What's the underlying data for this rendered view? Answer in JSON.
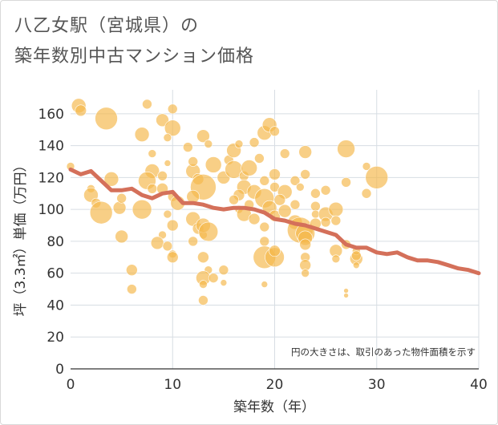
{
  "title_line1": "八乙女駅（宮城県）の",
  "title_line2": "築年数別中古マンション価格",
  "chart_data": {
    "type": "scatter",
    "xlabel": "築年数（年）",
    "ylabel": "坪（3.3㎡）単価（万円）",
    "xlim": [
      0,
      40
    ],
    "ylim": [
      0,
      175
    ],
    "xticks": [
      0,
      10,
      20,
      30,
      40
    ],
    "yticks": [
      0,
      20,
      40,
      60,
      80,
      100,
      120,
      140,
      160
    ],
    "note": "円の大きさは、取引のあった物件面積を示す",
    "colors": {
      "bubble": "#f5b84c",
      "trend": "#d4705a",
      "grid": "#d7dde3"
    },
    "bubbles": [
      [
        0.8,
        165,
        9
      ],
      [
        1,
        162,
        7
      ],
      [
        3.5,
        157,
        14
      ],
      [
        7.5,
        166,
        6
      ],
      [
        7,
        147,
        9
      ],
      [
        9,
        156,
        8
      ],
      [
        10,
        163,
        6
      ],
      [
        10,
        151,
        10
      ],
      [
        9.5,
        145,
        5
      ],
      [
        8,
        135,
        5
      ],
      [
        8,
        124,
        9
      ],
      [
        7.5,
        118,
        11
      ],
      [
        9,
        121,
        6
      ],
      [
        9.5,
        129,
        4
      ],
      [
        4,
        119,
        9
      ],
      [
        2,
        113,
        5
      ],
      [
        2,
        109,
        9
      ],
      [
        2.5,
        104,
        6
      ],
      [
        3,
        98,
        14
      ],
      [
        4.8,
        101,
        8
      ],
      [
        5,
        107,
        6
      ],
      [
        7,
        100,
        12
      ],
      [
        8,
        113,
        6
      ],
      [
        9,
        113,
        7
      ],
      [
        10,
        108,
        6
      ],
      [
        10.5,
        104,
        9
      ],
      [
        9.5,
        97,
        5
      ],
      [
        10,
        90,
        7
      ],
      [
        9,
        84,
        5
      ],
      [
        8.5,
        79,
        8
      ],
      [
        9.5,
        77,
        6
      ],
      [
        10,
        72,
        5
      ],
      [
        10,
        70,
        7
      ],
      [
        5,
        83,
        8
      ],
      [
        6,
        62,
        7
      ],
      [
        6,
        50,
        6
      ],
      [
        11.5,
        139,
        6
      ],
      [
        12,
        124,
        9
      ],
      [
        12,
        130,
        6
      ],
      [
        12.5,
        119,
        7
      ],
      [
        13,
        146,
        8
      ],
      [
        13.5,
        141,
        5
      ],
      [
        13,
        114,
        16
      ],
      [
        12,
        108,
        8
      ],
      [
        12,
        94,
        9
      ],
      [
        12.5,
        88,
        7
      ],
      [
        13,
        84,
        5
      ],
      [
        12,
        80,
        6
      ],
      [
        13,
        90,
        9
      ],
      [
        13.5,
        86,
        12
      ],
      [
        13,
        70,
        7
      ],
      [
        13.5,
        62,
        5
      ],
      [
        13,
        57,
        9
      ],
      [
        13,
        53,
        5
      ],
      [
        13,
        43,
        6
      ],
      [
        14,
        57,
        6
      ],
      [
        15,
        62,
        6
      ],
      [
        15,
        54,
        4
      ],
      [
        14,
        128,
        10
      ],
      [
        15,
        120,
        8
      ],
      [
        15.5,
        131,
        6
      ],
      [
        16,
        137,
        9
      ],
      [
        16.5,
        141,
        5
      ],
      [
        16,
        125,
        11
      ],
      [
        17,
        121,
        6
      ],
      [
        17.5,
        126,
        10
      ],
      [
        17,
        114,
        9
      ],
      [
        16.5,
        109,
        7
      ],
      [
        16,
        106,
        6
      ],
      [
        16.5,
        100,
        5
      ],
      [
        17,
        97,
        9
      ],
      [
        17.5,
        103,
        6
      ],
      [
        18,
        94,
        7
      ],
      [
        18,
        111,
        9
      ],
      [
        19,
        118,
        6
      ],
      [
        19,
        107,
        12
      ],
      [
        19.5,
        101,
        9
      ],
      [
        20,
        96,
        7
      ],
      [
        19,
        89,
        6
      ],
      [
        19,
        80,
        6
      ],
      [
        19,
        70,
        14
      ],
      [
        20,
        70,
        12
      ],
      [
        20,
        74,
        7
      ],
      [
        19,
        53,
        4
      ],
      [
        18.5,
        132,
        6
      ],
      [
        18,
        142,
        6
      ],
      [
        19,
        148,
        9
      ],
      [
        19.5,
        153,
        9
      ],
      [
        20,
        149,
        6
      ],
      [
        21,
        135,
        6
      ],
      [
        20,
        122,
        7
      ],
      [
        20,
        114,
        6
      ],
      [
        21,
        111,
        9
      ],
      [
        20.5,
        106,
        7
      ],
      [
        21,
        99,
        8
      ],
      [
        22,
        103,
        6
      ],
      [
        22,
        92,
        9
      ],
      [
        22.5,
        87,
        16
      ],
      [
        23,
        85,
        12
      ],
      [
        23,
        82,
        9
      ],
      [
        23,
        78,
        7
      ],
      [
        23,
        70,
        6
      ],
      [
        23,
        65,
        7
      ],
      [
        23,
        60,
        5
      ],
      [
        22,
        118,
        6
      ],
      [
        22.5,
        114,
        5
      ],
      [
        23,
        136,
        8
      ],
      [
        23,
        122,
        6
      ],
      [
        24,
        110,
        6
      ],
      [
        24,
        102,
        6
      ],
      [
        25,
        112,
        6
      ],
      [
        24,
        97,
        5
      ],
      [
        24,
        91,
        7
      ],
      [
        25,
        97,
        9
      ],
      [
        25,
        92,
        6
      ],
      [
        26,
        100,
        9
      ],
      [
        26,
        93,
        6
      ],
      [
        26,
        74,
        8
      ],
      [
        27,
        138,
        11
      ],
      [
        27,
        117,
        6
      ],
      [
        27,
        78,
        6
      ],
      [
        28,
        69,
        8
      ],
      [
        28,
        74,
        5
      ],
      [
        28,
        71,
        6
      ],
      [
        28,
        65,
        4
      ],
      [
        29,
        110,
        6
      ],
      [
        29,
        127,
        5
      ],
      [
        30,
        120,
        14
      ],
      [
        26,
        69,
        5
      ],
      [
        27,
        49,
        3
      ],
      [
        27,
        46,
        3
      ],
      [
        0,
        127,
        5
      ]
    ],
    "trend": [
      [
        0,
        125
      ],
      [
        1,
        122
      ],
      [
        2,
        124
      ],
      [
        3,
        118
      ],
      [
        4,
        112
      ],
      [
        5,
        112
      ],
      [
        6,
        113
      ],
      [
        7,
        109
      ],
      [
        8,
        107
      ],
      [
        9,
        110
      ],
      [
        10,
        111
      ],
      [
        11,
        104
      ],
      [
        12,
        104
      ],
      [
        13,
        103
      ],
      [
        14,
        101
      ],
      [
        15,
        100
      ],
      [
        16,
        101
      ],
      [
        17,
        101
      ],
      [
        18,
        100
      ],
      [
        19,
        98
      ],
      [
        20,
        94
      ],
      [
        21,
        93
      ],
      [
        22,
        91
      ],
      [
        23,
        90
      ],
      [
        24,
        88
      ],
      [
        25,
        86
      ],
      [
        26,
        84
      ],
      [
        27,
        78
      ],
      [
        28,
        76
      ],
      [
        29,
        76
      ],
      [
        30,
        73
      ],
      [
        31,
        72
      ],
      [
        32,
        73
      ],
      [
        33,
        70
      ],
      [
        34,
        68
      ],
      [
        35,
        68
      ],
      [
        36,
        67
      ],
      [
        37,
        65
      ],
      [
        38,
        63
      ],
      [
        39,
        62
      ],
      [
        40,
        60
      ]
    ]
  }
}
